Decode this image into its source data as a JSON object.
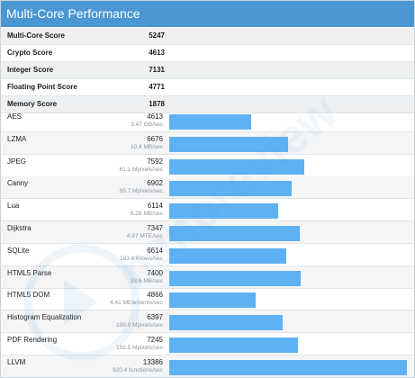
{
  "header": {
    "title": "Multi-Core Performance"
  },
  "summary": [
    {
      "label": "Multi-Core Score",
      "value": "5247"
    },
    {
      "label": "Crypto Score",
      "value": "4613"
    },
    {
      "label": "Integer Score",
      "value": "7131"
    },
    {
      "label": "Floating Point Score",
      "value": "4771"
    },
    {
      "label": "Memory Score",
      "value": "1878"
    }
  ],
  "benchmarks": [
    {
      "name": "AES",
      "score": "4613",
      "detail": "3.47 GB/sec"
    },
    {
      "name": "LZMA",
      "score": "6676",
      "detail": "10.4 MB/sec"
    },
    {
      "name": "JPEG",
      "score": "7592",
      "detail": "61.1 Mpixels/sec"
    },
    {
      "name": "Canny",
      "score": "6902",
      "detail": "95.7 Mpixels/sec"
    },
    {
      "name": "Lua",
      "score": "6114",
      "detail": "6.28 MB/sec"
    },
    {
      "name": "Dijkstra",
      "score": "7347",
      "detail": "4.97 MTE/sec"
    },
    {
      "name": "SQLite",
      "score": "6614",
      "detail": "183.4 Krows/sec"
    },
    {
      "name": "HTML5 Parse",
      "score": "7400",
      "detail": "33.6 MB/sec"
    },
    {
      "name": "HTML5 DOM",
      "score": "4866",
      "detail": "4.41 MElements/sec"
    },
    {
      "name": "Histogram Equalization",
      "score": "6397",
      "detail": "199.9 Mpixels/sec"
    },
    {
      "name": "PDF Rendering",
      "score": "7245",
      "detail": "192.5 Mpixels/sec"
    },
    {
      "name": "LLVM",
      "score": "13386",
      "detail": "920.4 functions/sec"
    }
  ],
  "watermark": {
    "text": "nanoreview"
  },
  "chart_data": {
    "type": "bar",
    "orientation": "horizontal",
    "title": "Multi-Core Performance",
    "categories": [
      "AES",
      "LZMA",
      "JPEG",
      "Canny",
      "Lua",
      "Dijkstra",
      "SQLite",
      "HTML5 Parse",
      "HTML5 DOM",
      "Histogram Equalization",
      "PDF Rendering",
      "LLVM"
    ],
    "values": [
      4613,
      6676,
      7592,
      6902,
      6114,
      7347,
      6614,
      7400,
      4866,
      6397,
      7245,
      13386
    ],
    "xlim": [
      0,
      13386
    ],
    "grid": false,
    "bar_color": "#5eb1f3"
  }
}
